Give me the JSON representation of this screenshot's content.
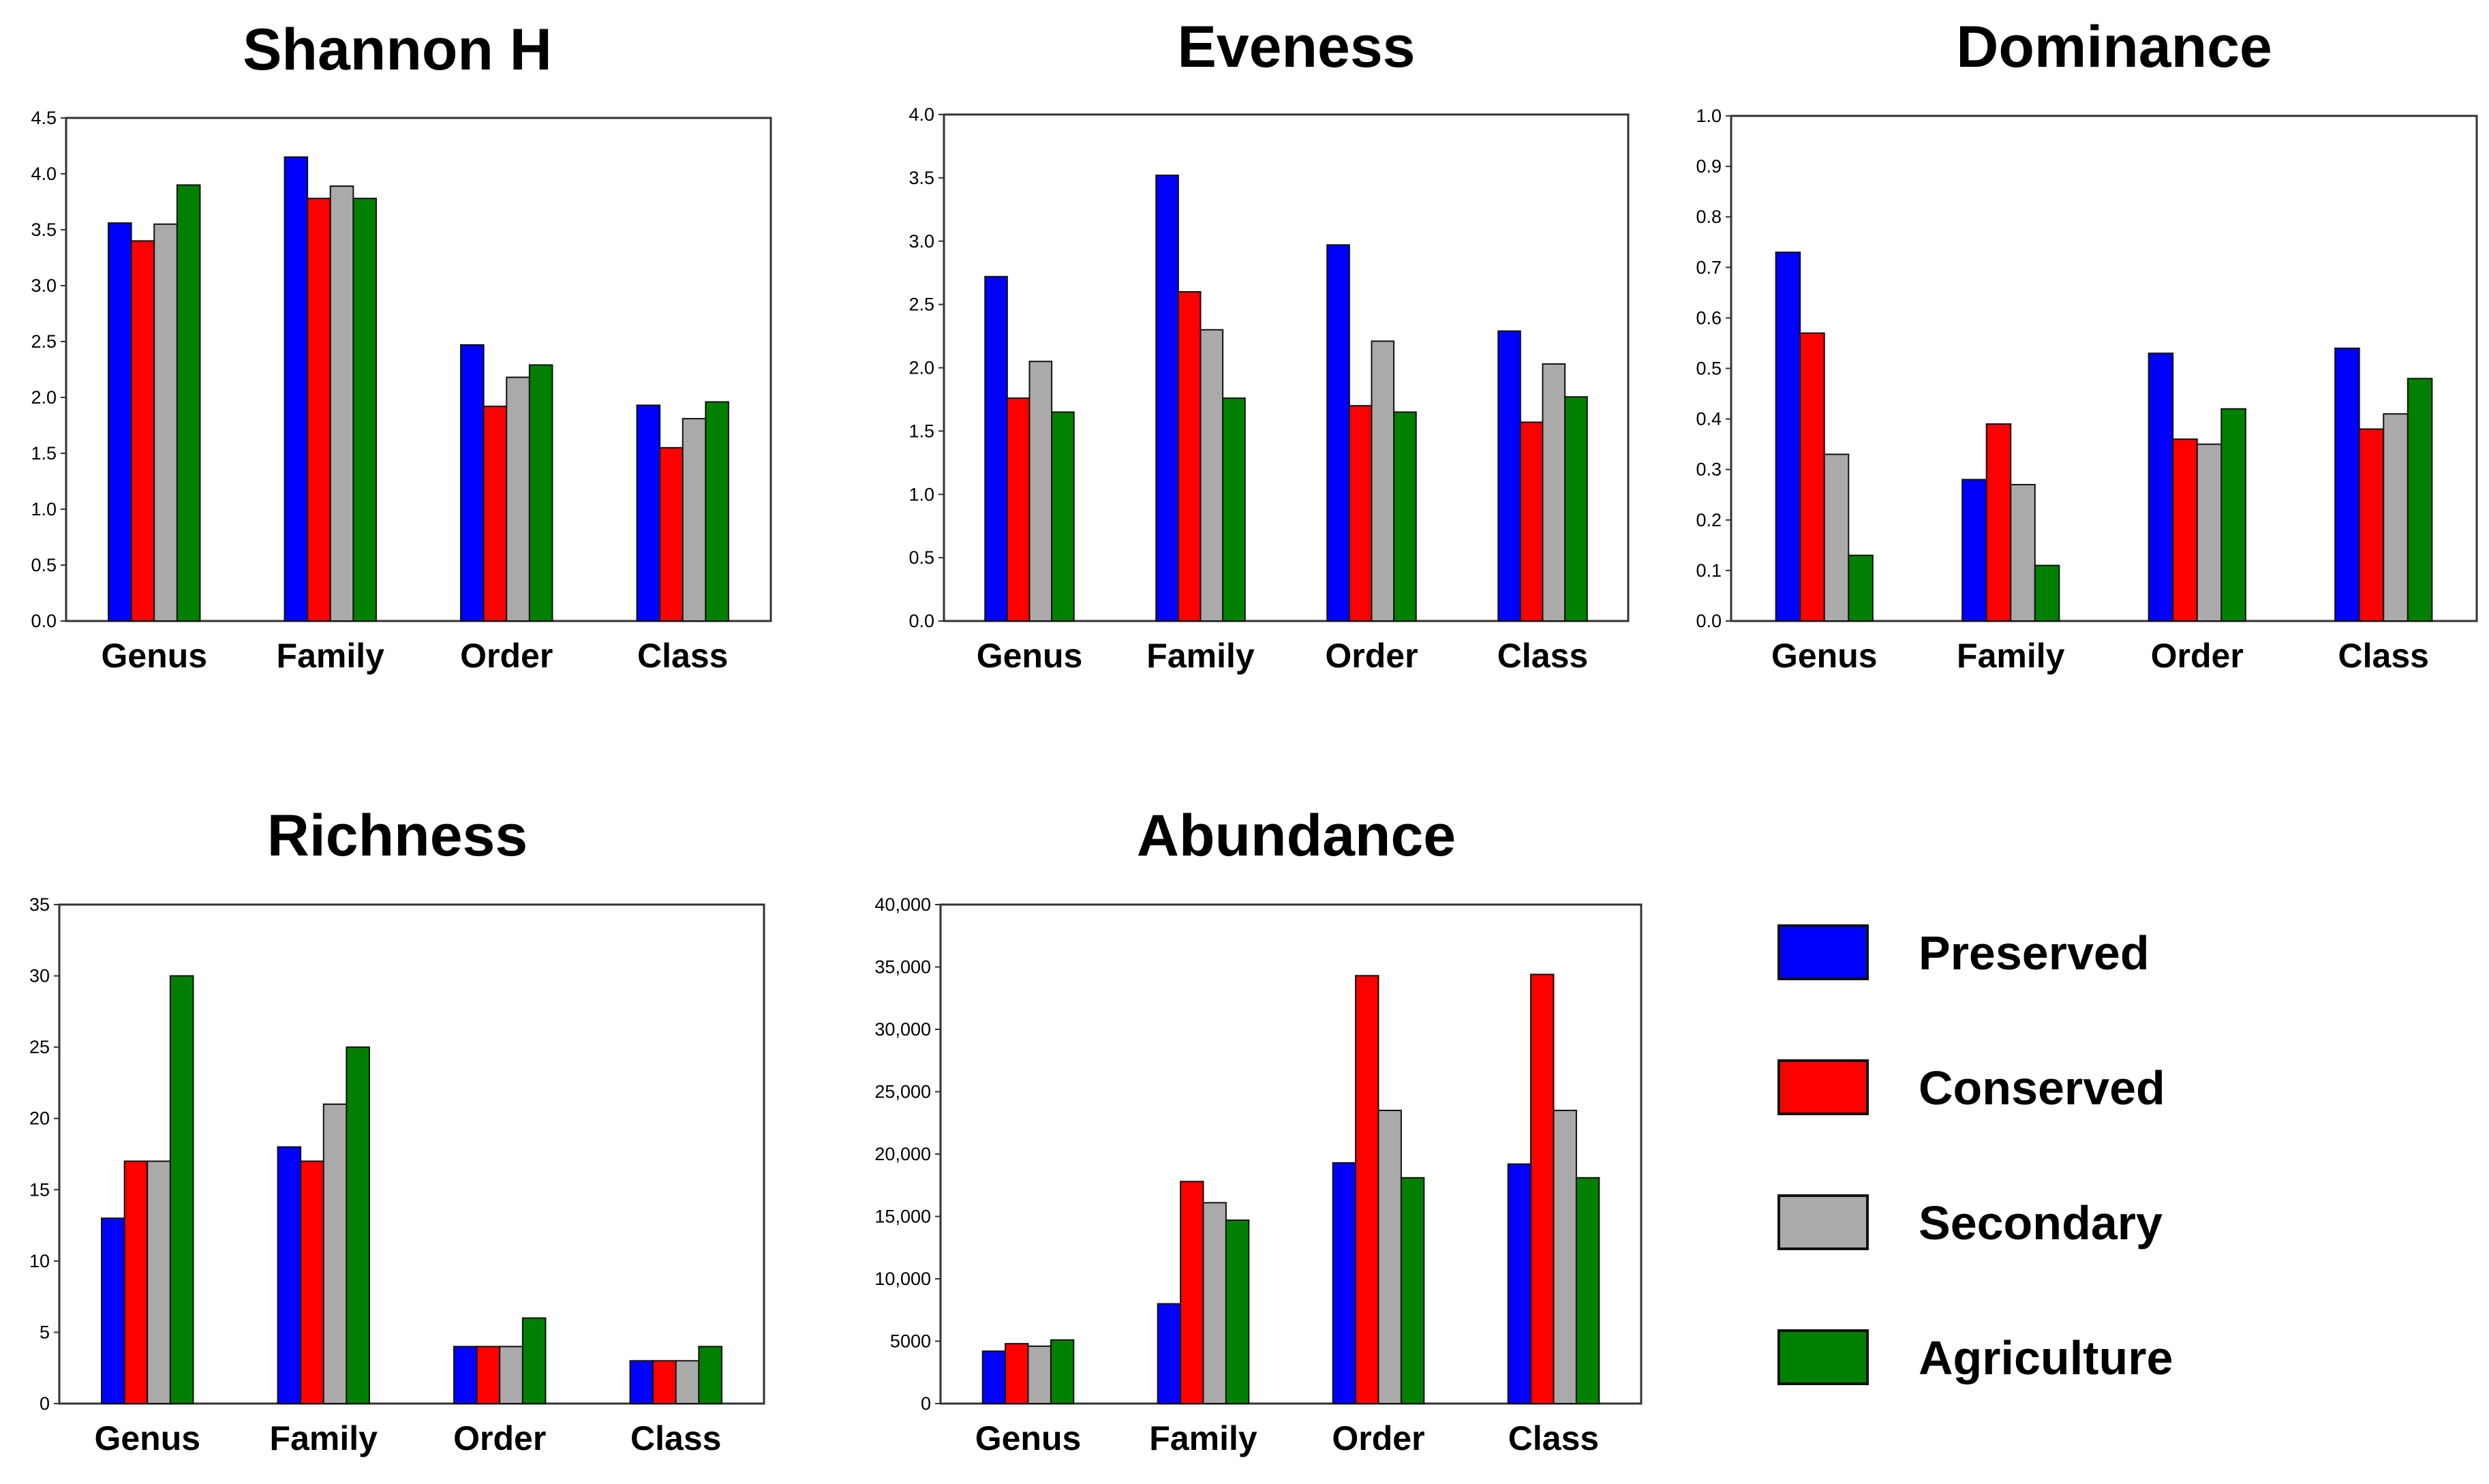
{
  "legend": [
    {
      "name": "Preserved",
      "color": "#0000FF"
    },
    {
      "name": "Conserved",
      "color": "#FF0000"
    },
    {
      "name": "Secondary",
      "color": "#AAAAAA"
    },
    {
      "name": "Agriculture",
      "color": "#008000"
    }
  ],
  "chart_data": [
    {
      "id": "shannon",
      "type": "bar",
      "title": "Shannon H",
      "categories": [
        "Genus",
        "Family",
        "Order",
        "Class"
      ],
      "ylim": [
        0,
        4.5
      ],
      "yticks": [
        "0.0",
        "0.5",
        "1.0",
        "1.5",
        "2.0",
        "2.5",
        "3.0",
        "3.5",
        "4.0",
        "4.5"
      ],
      "series": [
        {
          "name": "Preserved",
          "values": [
            3.56,
            4.15,
            2.47,
            1.93
          ]
        },
        {
          "name": "Conserved",
          "values": [
            3.4,
            3.78,
            1.92,
            1.55
          ]
        },
        {
          "name": "Secondary",
          "values": [
            3.55,
            3.89,
            2.18,
            1.81
          ]
        },
        {
          "name": "Agriculture",
          "values": [
            3.9,
            3.78,
            2.29,
            1.96
          ]
        }
      ]
    },
    {
      "id": "eveness",
      "type": "bar",
      "title": "Eveness",
      "categories": [
        "Genus",
        "Family",
        "Order",
        "Class"
      ],
      "ylim": [
        0,
        4.0
      ],
      "yticks": [
        "0.0",
        "0.5",
        "1.0",
        "1.5",
        "2.0",
        "2.5",
        "3.0",
        "3.5",
        "4.0"
      ],
      "series": [
        {
          "name": "Preserved",
          "values": [
            2.72,
            3.52,
            2.97,
            2.29
          ]
        },
        {
          "name": "Conserved",
          "values": [
            1.76,
            2.6,
            1.7,
            1.57
          ]
        },
        {
          "name": "Secondary",
          "values": [
            2.05,
            2.3,
            2.21,
            2.03
          ]
        },
        {
          "name": "Agriculture",
          "values": [
            1.65,
            1.76,
            1.65,
            1.77
          ]
        }
      ]
    },
    {
      "id": "dominance",
      "type": "bar",
      "title": "Dominance",
      "categories": [
        "Genus",
        "Family",
        "Order",
        "Class"
      ],
      "ylim": [
        0,
        1.0
      ],
      "yticks": [
        "0.0",
        "0.1",
        "0.2",
        "0.3",
        "0.4",
        "0.5",
        "0.6",
        "0.7",
        "0.8",
        "0.9",
        "1.0"
      ],
      "series": [
        {
          "name": "Preserved",
          "values": [
            0.73,
            0.28,
            0.53,
            0.54
          ]
        },
        {
          "name": "Conserved",
          "values": [
            0.57,
            0.39,
            0.36,
            0.38
          ]
        },
        {
          "name": "Secondary",
          "values": [
            0.33,
            0.27,
            0.35,
            0.41
          ]
        },
        {
          "name": "Agriculture",
          "values": [
            0.13,
            0.11,
            0.42,
            0.48
          ]
        }
      ]
    },
    {
      "id": "richness",
      "type": "bar",
      "title": "Richness",
      "categories": [
        "Genus",
        "Family",
        "Order",
        "Class"
      ],
      "ylim": [
        0,
        35
      ],
      "yticks": [
        "0",
        "5",
        "10",
        "15",
        "20",
        "25",
        "30",
        "35"
      ],
      "series": [
        {
          "name": "Preserved",
          "values": [
            13,
            18,
            4,
            3
          ]
        },
        {
          "name": "Conserved",
          "values": [
            17,
            17,
            4,
            3
          ]
        },
        {
          "name": "Secondary",
          "values": [
            17,
            21,
            4,
            3
          ]
        },
        {
          "name": "Agriculture",
          "values": [
            30,
            25,
            6,
            4
          ]
        }
      ]
    },
    {
      "id": "abundance",
      "type": "bar",
      "title": "Abundance",
      "categories": [
        "Genus",
        "Family",
        "Order",
        "Class"
      ],
      "ylim": [
        0,
        40000
      ],
      "yticks": [
        "0",
        "5000",
        "10,000",
        "15,000",
        "20,000",
        "25,000",
        "30,000",
        "35,000",
        "40,000"
      ],
      "series": [
        {
          "name": "Preserved",
          "values": [
            4200,
            8000,
            19300,
            19200
          ]
        },
        {
          "name": "Conserved",
          "values": [
            4800,
            17800,
            34300,
            34400
          ]
        },
        {
          "name": "Secondary",
          "values": [
            4600,
            16100,
            23500,
            23500
          ]
        },
        {
          "name": "Agriculture",
          "values": [
            5100,
            14700,
            18100,
            18100
          ]
        }
      ]
    }
  ]
}
